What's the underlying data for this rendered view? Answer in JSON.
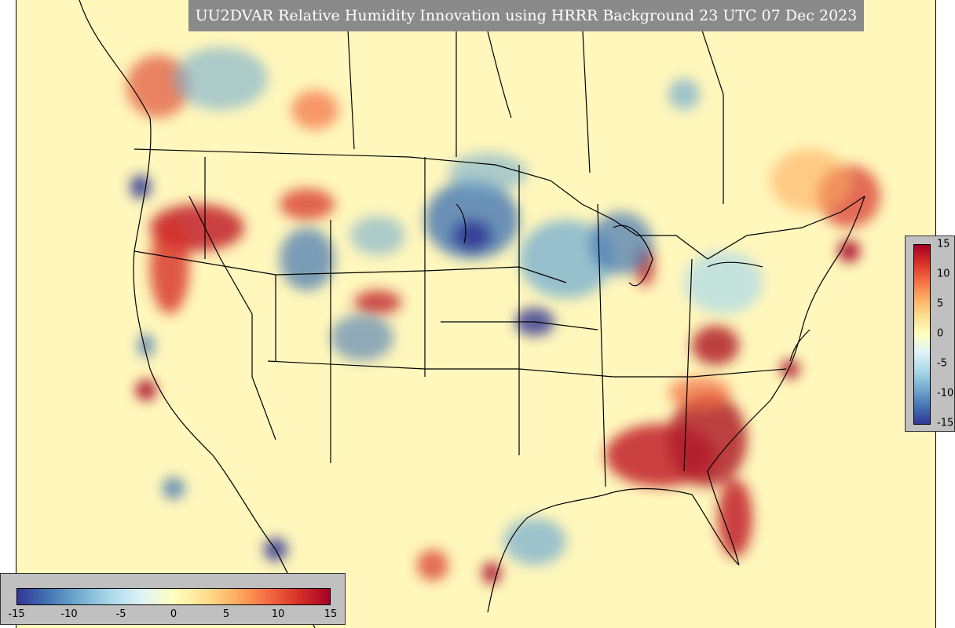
{
  "title": "UU2DVAR Relative Humidity Innovation using HRRR Background 23 UTC 07 Dec 2023",
  "colorbar": {
    "min": -15,
    "max": 15,
    "ticks": [
      "15",
      "10",
      "5",
      "0",
      "-5",
      "-10",
      "-15"
    ],
    "bottom_ticks": [
      "-15",
      "-10",
      "-5",
      "0",
      "5",
      "10",
      "15"
    ],
    "colors": [
      "#313695",
      "#4575b4",
      "#74add1",
      "#abd9e9",
      "#e0f3f8",
      "#ffffbf",
      "#fee090",
      "#fdae61",
      "#f46d43",
      "#d73027",
      "#a50026"
    ]
  }
}
